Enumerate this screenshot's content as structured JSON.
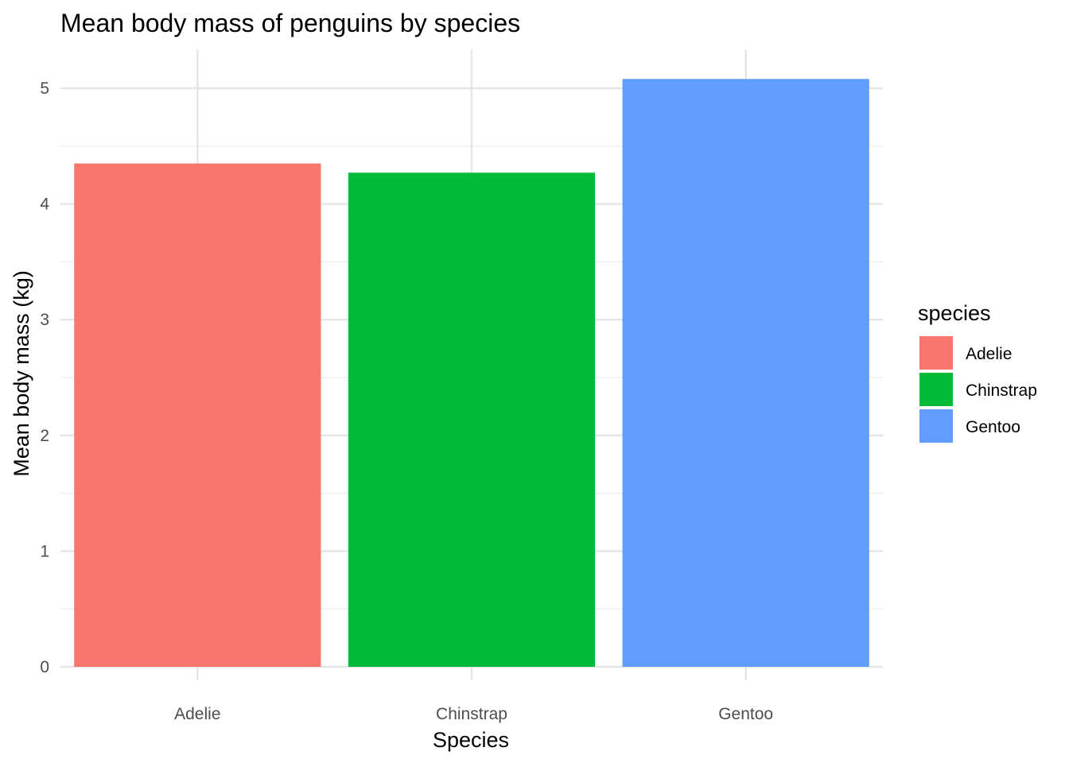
{
  "chart_data": {
    "type": "bar",
    "title": "Mean body mass of penguins by species",
    "xlabel": "Species",
    "ylabel": "Mean body mass (kg)",
    "categories": [
      "Adelie",
      "Chinstrap",
      "Gentoo"
    ],
    "values": [
      4.35,
      4.27,
      5.08
    ],
    "colors": [
      "#F8766D",
      "#00BA38",
      "#619CFF"
    ],
    "ylim": [
      0,
      5.3
    ],
    "yticks": [
      0,
      1,
      2,
      3,
      4,
      5
    ],
    "grid": true,
    "legend": {
      "title": "species",
      "placement": "right",
      "entries": [
        "Adelie",
        "Chinstrap",
        "Gentoo"
      ]
    }
  }
}
